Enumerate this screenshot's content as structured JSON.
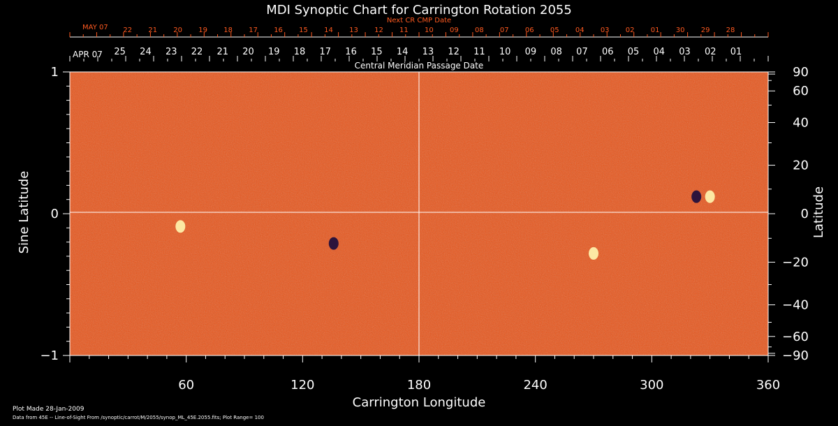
{
  "chart_data": {
    "type": "heatmap",
    "title": "MDI Synoptic Chart for Carrington Rotation 2055",
    "xlabel": "Carrington Longitude",
    "ylabel_left": "Sine Latitude",
    "ylabel_right": "Latitude",
    "xlim": [
      0,
      360
    ],
    "ylim": [
      -1,
      1
    ],
    "x_ticks": [
      60,
      120,
      180,
      240,
      300,
      360
    ],
    "y_ticks_left": [
      {
        "value": 1,
        "label": "1"
      },
      {
        "value": 0,
        "label": "0"
      },
      {
        "value": -1,
        "label": "−1"
      }
    ],
    "y_ticks_right": [
      {
        "deg": 90,
        "label": "90"
      },
      {
        "deg": 60,
        "label": "60"
      },
      {
        "deg": 40,
        "label": "40"
      },
      {
        "deg": 20,
        "label": "20"
      },
      {
        "deg": 0,
        "label": "0"
      },
      {
        "deg": -20,
        "label": "−20"
      },
      {
        "deg": -40,
        "label": "−40"
      },
      {
        "deg": -60,
        "label": "−60"
      },
      {
        "deg": -90,
        "label": "−90"
      }
    ],
    "cmp_axis": {
      "title": "Central Meridian Passage Date",
      "month_label": "APR 07",
      "labels": [
        "25",
        "24",
        "23",
        "22",
        "21",
        "20",
        "19",
        "18",
        "17",
        "16",
        "15",
        "14",
        "13",
        "12",
        "11",
        "10",
        "09",
        "08",
        "07",
        "06",
        "05",
        "04",
        "03",
        "02",
        "01"
      ]
    },
    "next_cmp_axis": {
      "title": "Next CR CMP Date",
      "month_label": "MAY 07",
      "labels": [
        "22",
        "21",
        "20",
        "19",
        "18",
        "17",
        "16",
        "15",
        "14",
        "13",
        "12",
        "11",
        "10",
        "09",
        "08",
        "07",
        "06",
        "05",
        "04",
        "03",
        "02",
        "01",
        "30",
        "29",
        "28"
      ]
    },
    "features": [
      {
        "lon": 330,
        "sinlat": 0.12,
        "polarity": "positive"
      },
      {
        "lon": 323,
        "sinlat": 0.12,
        "polarity": "negative"
      },
      {
        "lon": 136,
        "sinlat": -0.21,
        "polarity": "negative"
      },
      {
        "lon": 57,
        "sinlat": -0.09,
        "polarity": "positive"
      },
      {
        "lon": 270,
        "sinlat": -0.28,
        "polarity": "positive"
      }
    ],
    "plot_range": 100,
    "grid": true,
    "crosshair": {
      "lon": 180,
      "sinlat": 0
    }
  },
  "footer": {
    "line1": "Plot Made 28-Jan-2009",
    "line2": "Data from 45E -- Line-of-Sight From /synoptic/carrot/M/2055/synop_ML_45E.2055.fits; Plot Range=  100"
  },
  "colors": {
    "background": "#000000",
    "field": "#e8561c",
    "positive": "#fff6b0",
    "negative": "#1a0b3d",
    "next_axis_text": "#ff5a20",
    "axis_text": "#ffffff"
  }
}
